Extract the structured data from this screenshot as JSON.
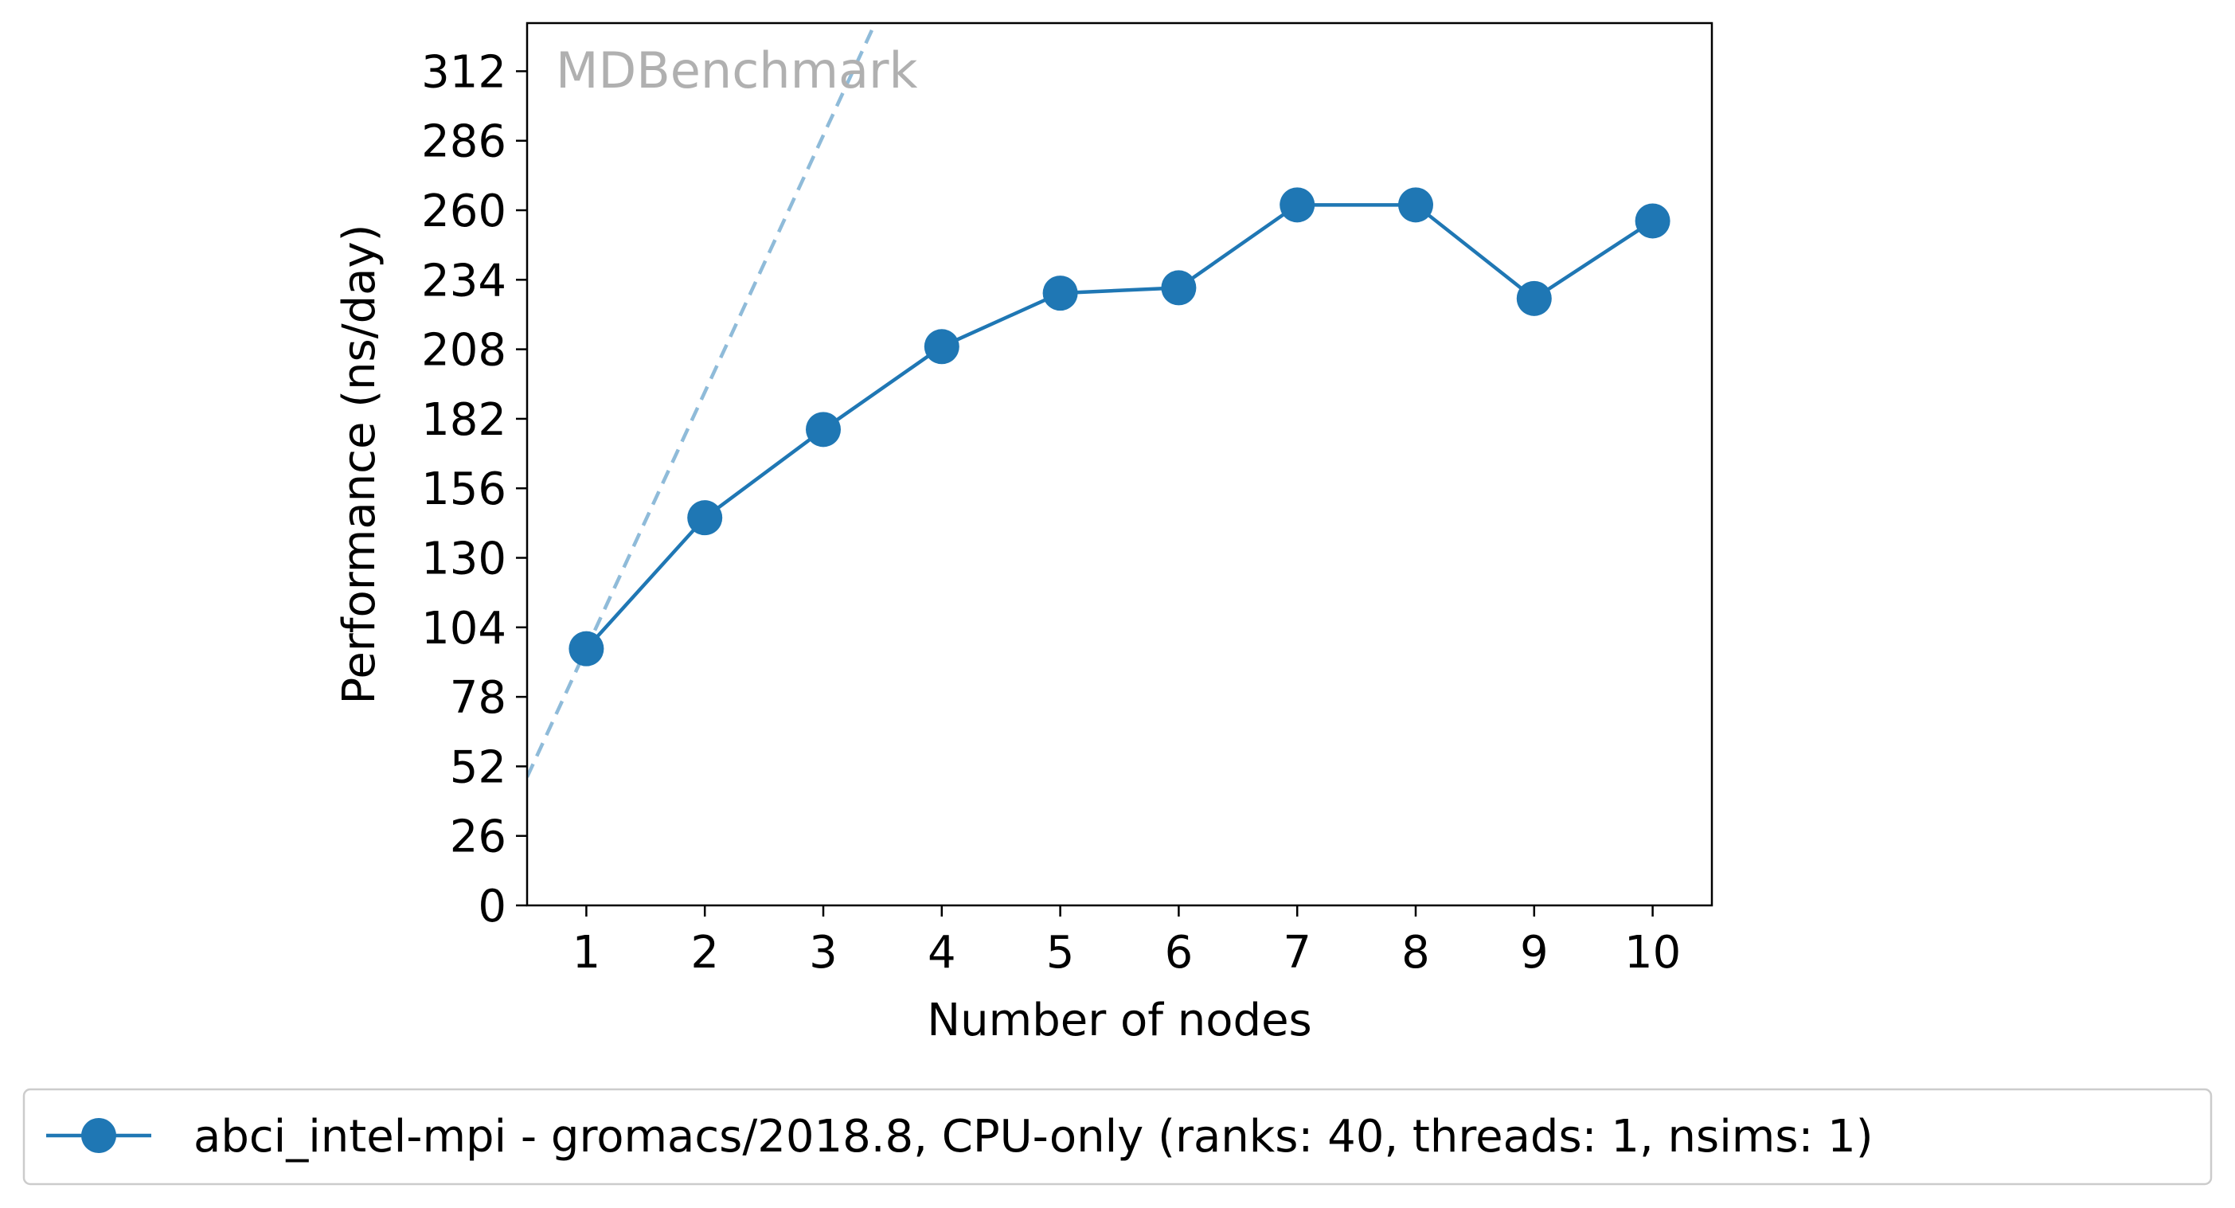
{
  "chart_data": {
    "type": "line",
    "title": "",
    "watermark": "MDBenchmark",
    "xlabel": "Number of nodes",
    "ylabel": "Performance (ns/day)",
    "x": [
      1,
      2,
      3,
      4,
      5,
      6,
      7,
      8,
      9,
      10
    ],
    "xlim": [
      0.5,
      10.5
    ],
    "ylim": [
      0,
      330
    ],
    "yticks": [
      0,
      26,
      52,
      78,
      104,
      130,
      156,
      182,
      208,
      234,
      260,
      286,
      312
    ],
    "xticks": [
      1,
      2,
      3,
      4,
      5,
      6,
      7,
      8,
      9,
      10
    ],
    "grid": false,
    "legend_position": "bottom",
    "series": [
      {
        "name": "abci_intel-mpi - gromacs/2018.8, CPU-only (ranks: 40, threads: 1, nsims: 1)",
        "values": [
          96,
          145,
          178,
          209,
          229,
          231,
          262,
          262,
          227,
          256
        ],
        "color": "#1f77b4",
        "marker": "circle"
      }
    ],
    "ideal_scaling": {
      "per_node": 96,
      "color": "#1f77b4",
      "style": "dashed"
    }
  }
}
